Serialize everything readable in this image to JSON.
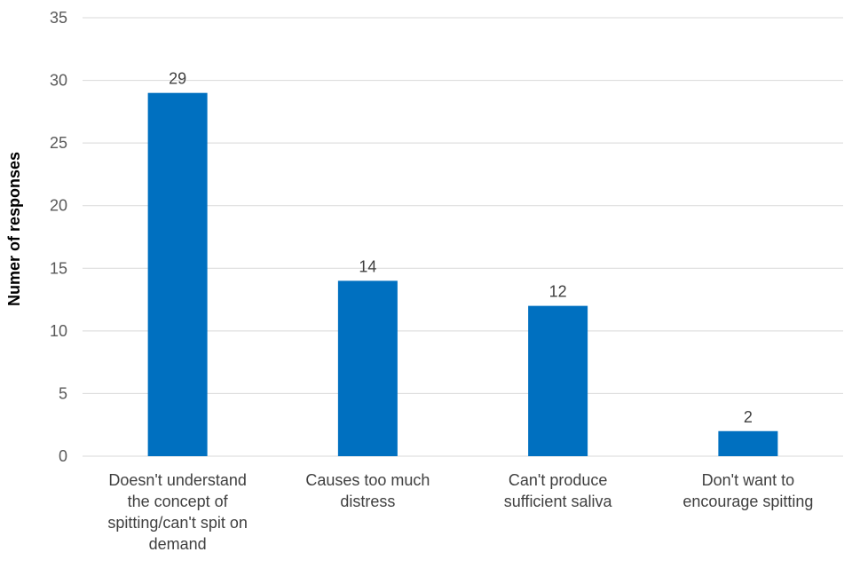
{
  "chart_data": {
    "type": "bar",
    "title": "",
    "xlabel": "",
    "ylabel": "Numer of responses",
    "ylim": [
      0,
      35
    ],
    "yticks": [
      0,
      5,
      10,
      15,
      20,
      25,
      30,
      35
    ],
    "grid": true,
    "legend": "none",
    "bar_color": "#0070c0",
    "categories": [
      [
        "Doesn't understand",
        "the concept of",
        "spitting/can't spit on",
        "demand"
      ],
      [
        "Causes too much",
        "distress"
      ],
      [
        "Can't produce",
        "sufficient saliva"
      ],
      [
        "Don't want to",
        "encourage spitting"
      ]
    ],
    "values": [
      29,
      14,
      12,
      2
    ],
    "data_labels": [
      "29",
      "14",
      "12",
      "2"
    ]
  }
}
